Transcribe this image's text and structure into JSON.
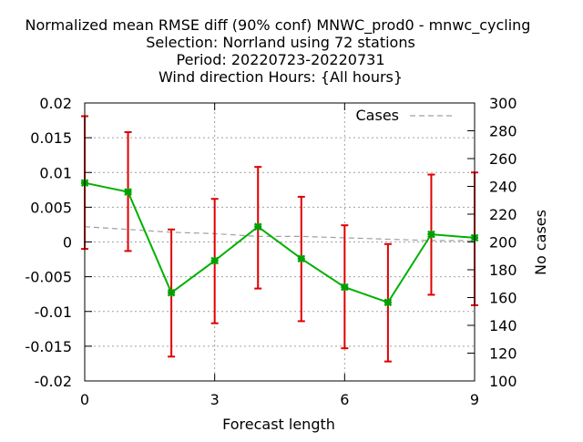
{
  "chart_data": {
    "type": "line",
    "title_lines": [
      "Normalized mean RMSE diff (90% conf) MNWC_prod0 - mnwc_cycling",
      "Selection: Norrland using    72 stations",
      "Period: 20220723-20220731",
      "Wind direction   Hours: {All hours}"
    ],
    "xlabel": "Forecast length",
    "ylabel": "",
    "y2label": "No cases",
    "x_ticks": [
      "0",
      "3",
      "6",
      "9"
    ],
    "y_ticks": [
      "0.02",
      "0.015",
      "0.01",
      "0.005",
      "0",
      "-0.005",
      "-0.01",
      "-0.015",
      "-0.02"
    ],
    "y2_ticks": [
      "300",
      "280",
      "260",
      "240",
      "220",
      "200",
      "180",
      "160",
      "140",
      "120",
      "100"
    ],
    "xlim": [
      0,
      9
    ],
    "ylim": [
      -0.02,
      0.02
    ],
    "y2lim": [
      100,
      300
    ],
    "grid": true,
    "legend_position": "top-right",
    "series": [
      {
        "x": [
          0,
          1,
          2,
          3,
          4,
          5,
          6,
          7,
          8,
          9
        ],
        "values": [
          0.0085,
          0.0072,
          -0.0073,
          -0.0027,
          0.0022,
          -0.0024,
          -0.0065,
          -0.0087,
          0.0011,
          0.0006
        ],
        "err_low": [
          -0.001,
          -0.0013,
          -0.0165,
          -0.0117,
          -0.0067,
          -0.0114,
          -0.0153,
          -0.0172,
          -0.0076,
          -0.0091
        ],
        "err_high": [
          0.0181,
          0.0158,
          0.0018,
          0.0062,
          0.0108,
          0.0065,
          0.0024,
          -0.0003,
          0.0097,
          0.01
        ],
        "color": "#00b000",
        "error_color": "#e00000"
      },
      {
        "name": "Cases",
        "axis": "right",
        "x": [
          0,
          1,
          2,
          3,
          4,
          5,
          6,
          7,
          8,
          9
        ],
        "values": [
          211,
          209,
          207,
          206,
          204,
          204,
          203,
          202,
          201,
          201
        ],
        "color": "#a0a0a0"
      }
    ]
  }
}
